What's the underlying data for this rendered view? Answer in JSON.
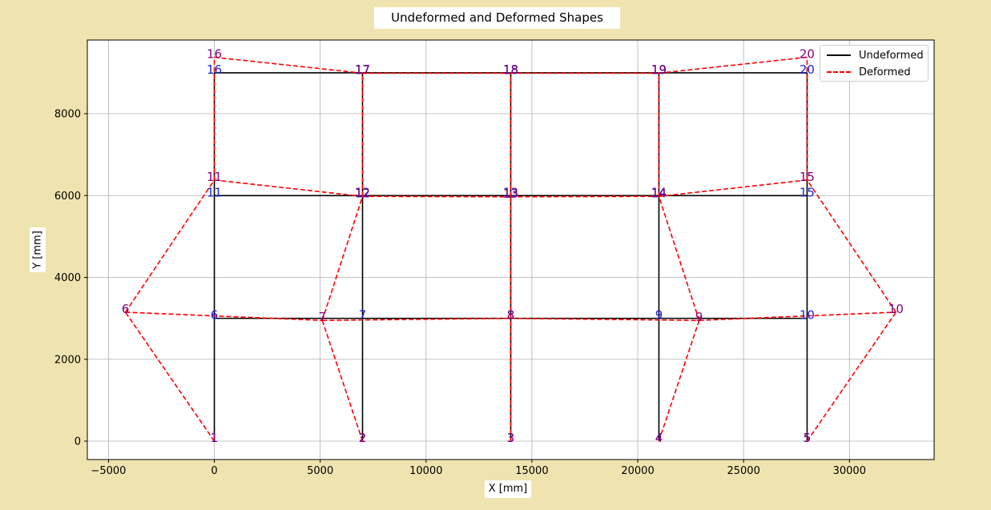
{
  "chart_data": {
    "type": "line",
    "title": "Undeformed and Deformed Shapes",
    "xlabel": "X [mm]",
    "ylabel": "Y [mm]",
    "xlim": [
      -6000,
      34000
    ],
    "ylim": [
      -450,
      9800
    ],
    "xticks": [
      -5000,
      0,
      5000,
      10000,
      15000,
      20000,
      25000,
      30000
    ],
    "yticks": [
      0,
      2000,
      4000,
      6000,
      8000
    ],
    "grid": true,
    "legend_position": "top-right",
    "colors": {
      "undeformed": "#000000",
      "deformed": "#ff0000",
      "undeformed_label": "#1f1fd0",
      "deformed_label": "#800080",
      "grid": "#b0b0b0"
    },
    "series": [
      {
        "name": "Undeformed",
        "style": "solid",
        "nodes": [
          {
            "id": "1",
            "x": 0,
            "y": 0
          },
          {
            "id": "2",
            "x": 7000,
            "y": 0
          },
          {
            "id": "3",
            "x": 14000,
            "y": 0
          },
          {
            "id": "4",
            "x": 21000,
            "y": 0
          },
          {
            "id": "5",
            "x": 28000,
            "y": 0
          },
          {
            "id": "6",
            "x": 0,
            "y": 3000
          },
          {
            "id": "7",
            "x": 7000,
            "y": 3000
          },
          {
            "id": "8",
            "x": 14000,
            "y": 3000
          },
          {
            "id": "9",
            "x": 21000,
            "y": 3000
          },
          {
            "id": "10",
            "x": 28000,
            "y": 3000
          },
          {
            "id": "11",
            "x": 0,
            "y": 6000
          },
          {
            "id": "12",
            "x": 7000,
            "y": 6000
          },
          {
            "id": "13",
            "x": 14000,
            "y": 6000
          },
          {
            "id": "14",
            "x": 21000,
            "y": 6000
          },
          {
            "id": "15",
            "x": 28000,
            "y": 6000
          },
          {
            "id": "16",
            "x": 0,
            "y": 9000
          },
          {
            "id": "17",
            "x": 7000,
            "y": 9000
          },
          {
            "id": "18",
            "x": 14000,
            "y": 9000
          },
          {
            "id": "19",
            "x": 21000,
            "y": 9000
          },
          {
            "id": "20",
            "x": 28000,
            "y": 9000
          }
        ]
      },
      {
        "name": "Deformed",
        "style": "dashed",
        "nodes": [
          {
            "id": "1",
            "x": 0,
            "y": 0
          },
          {
            "id": "2",
            "x": 7000,
            "y": 0
          },
          {
            "id": "3",
            "x": 14000,
            "y": 0
          },
          {
            "id": "4",
            "x": 21000,
            "y": 0
          },
          {
            "id": "5",
            "x": 28000,
            "y": 0
          },
          {
            "id": "6",
            "x": -4200,
            "y": 3150
          },
          {
            "id": "7",
            "x": 5100,
            "y": 2950
          },
          {
            "id": "8",
            "x": 14000,
            "y": 3000
          },
          {
            "id": "9",
            "x": 22900,
            "y": 2950
          },
          {
            "id": "10",
            "x": 32200,
            "y": 3150
          },
          {
            "id": "11",
            "x": 0,
            "y": 6380
          },
          {
            "id": "12",
            "x": 7000,
            "y": 5980
          },
          {
            "id": "13",
            "x": 14000,
            "y": 5970
          },
          {
            "id": "14",
            "x": 21000,
            "y": 5980
          },
          {
            "id": "15",
            "x": 28000,
            "y": 6380
          },
          {
            "id": "16",
            "x": 0,
            "y": 9380
          },
          {
            "id": "17",
            "x": 7000,
            "y": 8990
          },
          {
            "id": "18",
            "x": 14000,
            "y": 8990
          },
          {
            "id": "19",
            "x": 21000,
            "y": 8990
          },
          {
            "id": "20",
            "x": 28000,
            "y": 9380
          }
        ]
      }
    ],
    "members": [
      [
        "1",
        "6"
      ],
      [
        "2",
        "7"
      ],
      [
        "3",
        "8"
      ],
      [
        "4",
        "9"
      ],
      [
        "5",
        "10"
      ],
      [
        "6",
        "11"
      ],
      [
        "7",
        "12"
      ],
      [
        "8",
        "13"
      ],
      [
        "9",
        "14"
      ],
      [
        "10",
        "15"
      ],
      [
        "11",
        "16"
      ],
      [
        "12",
        "17"
      ],
      [
        "13",
        "18"
      ],
      [
        "14",
        "19"
      ],
      [
        "15",
        "20"
      ],
      [
        "6",
        "7"
      ],
      [
        "7",
        "8"
      ],
      [
        "8",
        "9"
      ],
      [
        "9",
        "10"
      ],
      [
        "11",
        "12"
      ],
      [
        "12",
        "13"
      ],
      [
        "13",
        "14"
      ],
      [
        "14",
        "15"
      ],
      [
        "16",
        "17"
      ],
      [
        "17",
        "18"
      ],
      [
        "18",
        "19"
      ],
      [
        "19",
        "20"
      ]
    ]
  },
  "legend": {
    "items": [
      {
        "label": "Undeformed"
      },
      {
        "label": "Deformed"
      }
    ]
  }
}
